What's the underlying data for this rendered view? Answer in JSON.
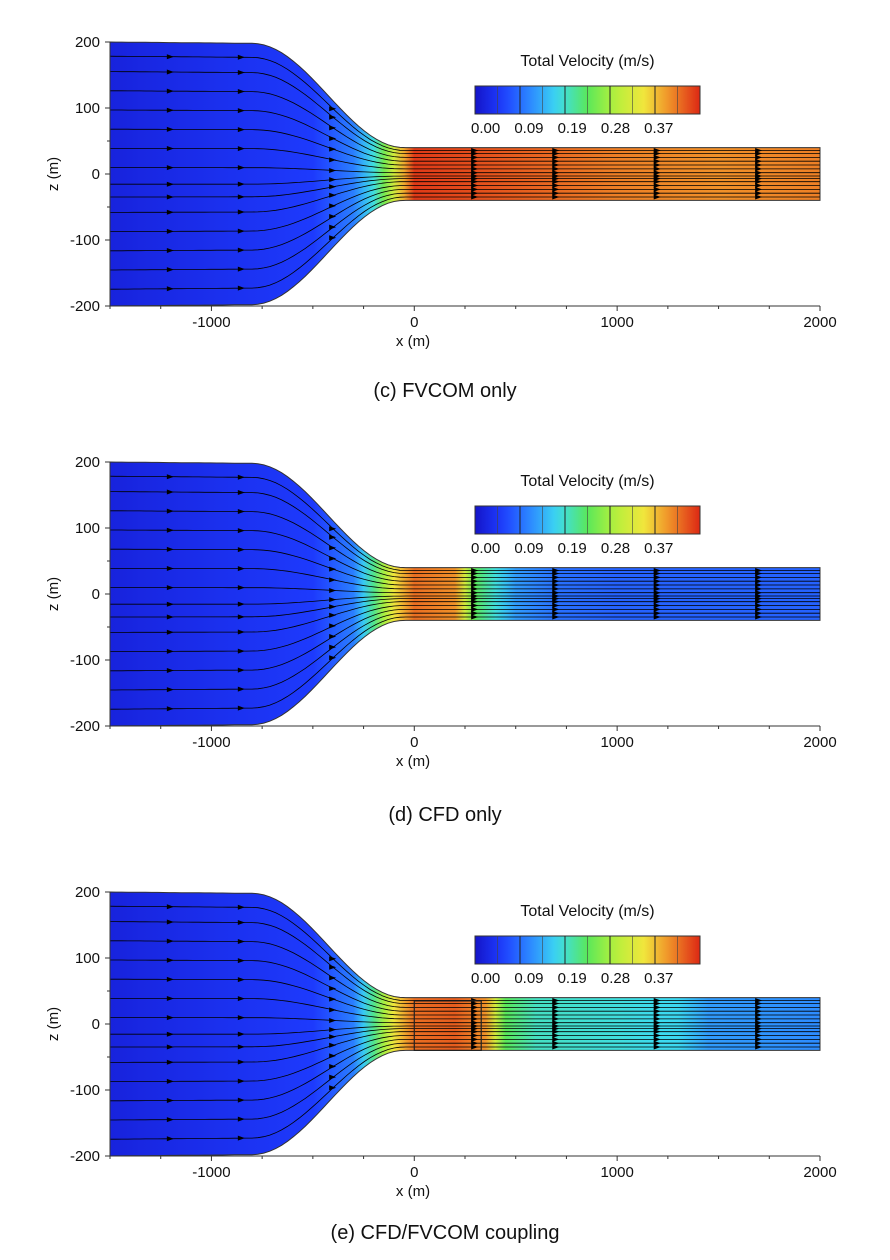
{
  "figure": {
    "captions": [
      "(c) FVCOM only",
      "(d) CFD only",
      "(e) CFD/FVCOM coupling"
    ]
  },
  "chart_data": [
    {
      "type": "heatmap",
      "title": "(c) FVCOM only",
      "xlabel": "x (m)",
      "ylabel": "z (m)",
      "xlim": [
        -1500,
        2000
      ],
      "ylim": [
        -200,
        200
      ],
      "xticks": [
        -1000,
        0,
        1000,
        2000
      ],
      "yticks": [
        200,
        100,
        0,
        -100,
        -200
      ],
      "colorbar": {
        "title": "Total Velocity (m/s)",
        "range": [
          0,
          0.44
        ],
        "ticks": [
          "0.00",
          "0.09",
          "0.19",
          "0.28",
          "0.37"
        ]
      },
      "domain": {
        "basin_halfwidth_m": 200,
        "channel_halfwidth_m": 40,
        "contraction_start_x_m": -800,
        "contraction_end_x_m": -50,
        "x_end_m": 2000
      },
      "velocity_profile": {
        "x": [
          -1500,
          -500,
          -300,
          -200,
          -100,
          0,
          500,
          1000,
          1500,
          2000
        ],
        "velocity": [
          0.02,
          0.05,
          0.1,
          0.17,
          0.3,
          0.43,
          0.41,
          0.39,
          0.38,
          0.39
        ]
      },
      "coupling_box": null
    },
    {
      "type": "heatmap",
      "title": "(d) CFD only",
      "xlabel": "x (m)",
      "ylabel": "z (m)",
      "xlim": [
        -1500,
        2000
      ],
      "ylim": [
        -200,
        200
      ],
      "xticks": [
        -1000,
        0,
        1000,
        2000
      ],
      "yticks": [
        200,
        100,
        0,
        -100,
        -200
      ],
      "colorbar": {
        "title": "Total Velocity (m/s)",
        "range": [
          0,
          0.44
        ],
        "ticks": [
          "0.00",
          "0.09",
          "0.19",
          "0.28",
          "0.37"
        ]
      },
      "domain": {
        "basin_halfwidth_m": 200,
        "channel_halfwidth_m": 40,
        "contraction_start_x_m": -800,
        "contraction_end_x_m": -50,
        "x_end_m": 2000
      },
      "velocity_profile": {
        "x": [
          -1500,
          -500,
          -300,
          -200,
          -100,
          0,
          200,
          300,
          500,
          700,
          1000,
          2000
        ],
        "velocity": [
          0.02,
          0.05,
          0.1,
          0.2,
          0.33,
          0.4,
          0.38,
          0.22,
          0.12,
          0.09,
          0.08,
          0.08
        ]
      },
      "coupling_box": null
    },
    {
      "type": "heatmap",
      "title": "(e) CFD/FVCOM coupling",
      "xlabel": "x (m)",
      "ylabel": "z (m)",
      "xlim": [
        -1500,
        2000
      ],
      "ylim": [
        -200,
        200
      ],
      "xticks": [
        -1000,
        0,
        1000,
        2000
      ],
      "yticks": [
        200,
        100,
        0,
        -100,
        -200
      ],
      "colorbar": {
        "title": "Total Velocity (m/s)",
        "range": [
          0,
          0.44
        ],
        "ticks": [
          "0.00",
          "0.09",
          "0.19",
          "0.28",
          "0.37"
        ]
      },
      "domain": {
        "basin_halfwidth_m": 200,
        "channel_halfwidth_m": 40,
        "contraction_start_x_m": -800,
        "contraction_end_x_m": -50,
        "x_end_m": 2000
      },
      "velocity_profile": {
        "x": [
          -1500,
          -500,
          -300,
          -200,
          -100,
          0,
          200,
          350,
          450,
          600,
          1000,
          1300,
          1450,
          2000
        ],
        "velocity": [
          0.02,
          0.05,
          0.1,
          0.2,
          0.33,
          0.4,
          0.41,
          0.38,
          0.22,
          0.18,
          0.17,
          0.16,
          0.12,
          0.11
        ]
      },
      "coupling_box": {
        "x": [
          0,
          330
        ],
        "z": [
          -40,
          35
        ]
      }
    }
  ]
}
